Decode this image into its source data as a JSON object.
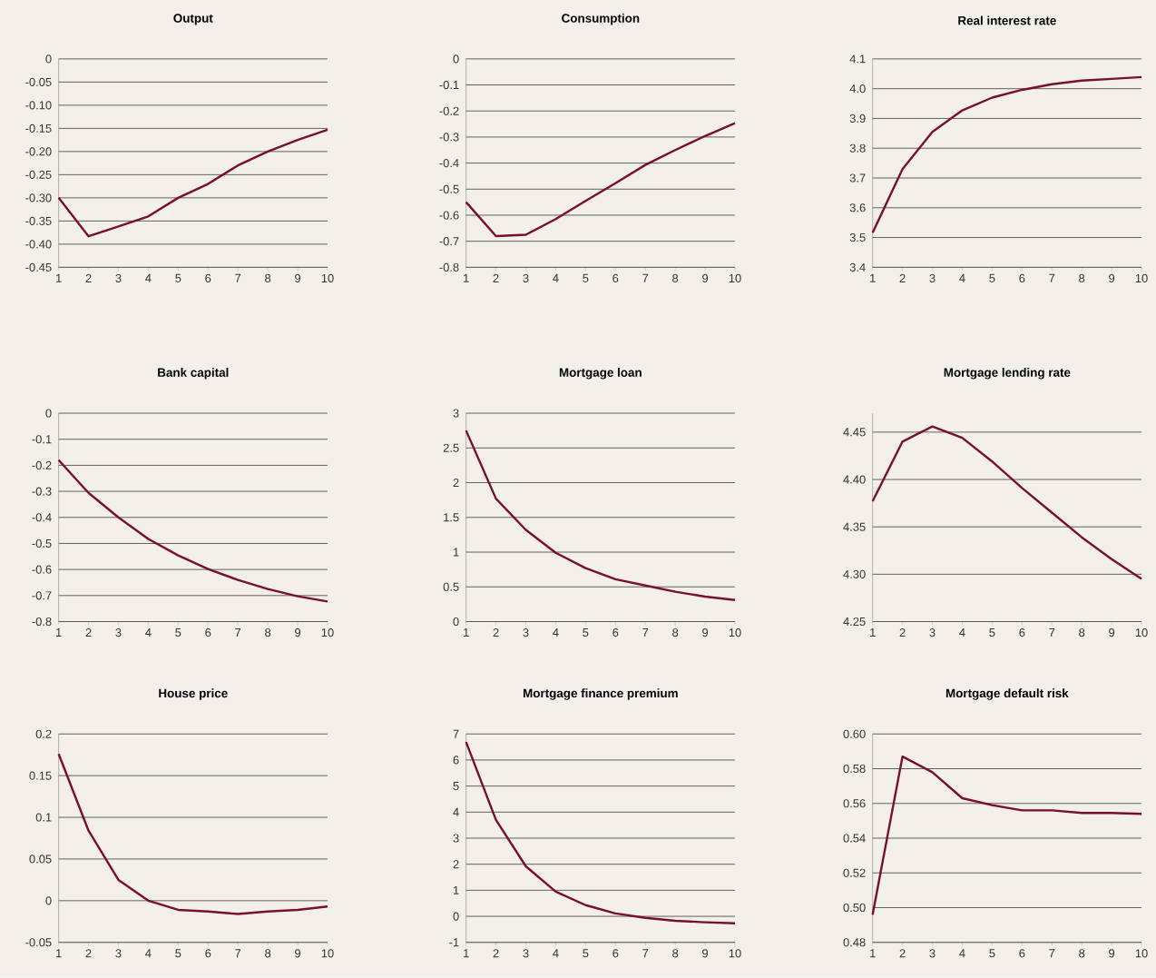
{
  "chart_data": [
    {
      "type": "line",
      "title": "Output",
      "x": [
        1,
        2,
        3,
        4,
        5,
        6,
        7,
        8,
        9,
        10
      ],
      "xlim": [
        1,
        10
      ],
      "xticks": [
        1,
        2,
        3,
        4,
        5,
        6,
        7,
        8,
        9,
        10
      ],
      "ylim": [
        -0.45,
        0
      ],
      "yticks": [
        {
          "value": -0.45,
          "label": "-0.45"
        },
        {
          "value": -0.4,
          "label": "-0.40"
        },
        {
          "value": -0.35,
          "label": "-0.35"
        },
        {
          "value": -0.3,
          "label": "-0.30"
        },
        {
          "value": -0.25,
          "label": "-0.25"
        },
        {
          "value": -0.2,
          "label": "-0.20"
        },
        {
          "value": -0.15,
          "label": "-0.15"
        },
        {
          "value": -0.1,
          "label": "-0.10"
        },
        {
          "value": -0.05,
          "label": "-0.05"
        },
        0
      ],
      "grid": "y",
      "color": "#7a0f2a",
      "values": [
        -0.3,
        -0.383,
        -0.362,
        -0.34,
        -0.3,
        -0.27,
        -0.23,
        -0.2,
        -0.175,
        -0.153
      ]
    },
    {
      "type": "line",
      "title": "Consumption",
      "x": [
        1,
        2,
        3,
        4,
        5,
        6,
        7,
        8,
        9,
        10
      ],
      "xlim": [
        1,
        10
      ],
      "xticks": [
        1,
        2,
        3,
        4,
        5,
        6,
        7,
        8,
        9,
        10
      ],
      "ylim": [
        -0.8,
        0
      ],
      "yticks": [
        -0.8,
        -0.7,
        -0.6,
        -0.5,
        -0.4,
        -0.3,
        -0.2,
        -0.1,
        0
      ],
      "grid": "y",
      "color": "#7a0f2a",
      "values": [
        -0.55,
        -0.68,
        -0.675,
        -0.615,
        -0.545,
        -0.477,
        -0.407,
        -0.35,
        -0.296,
        -0.247
      ]
    },
    {
      "type": "line",
      "title": "Real interest rate",
      "x": [
        1,
        2,
        3,
        4,
        5,
        6,
        7,
        8,
        9,
        10
      ],
      "xlim": [
        1,
        10
      ],
      "xticks": [
        1,
        2,
        3,
        4,
        5,
        6,
        7,
        8,
        9,
        10
      ],
      "ylim": [
        3.4,
        4.1
      ],
      "yticks": [
        3.4,
        3.5,
        3.6,
        3.7,
        3.8,
        3.9,
        {
          "value": 4,
          "label": "4.0"
        },
        4.1
      ],
      "grid": "y",
      "color": "#7a0f2a",
      "values": [
        3.516,
        3.73,
        3.855,
        3.927,
        3.97,
        3.996,
        4.015,
        4.027,
        4.033,
        4.039
      ]
    },
    {
      "type": "line",
      "title": "Bank capital",
      "x": [
        1,
        2,
        3,
        4,
        5,
        6,
        7,
        8,
        9,
        10
      ],
      "xlim": [
        1,
        10
      ],
      "xticks": [
        1,
        2,
        3,
        4,
        5,
        6,
        7,
        8,
        9,
        10
      ],
      "ylim": [
        -0.8,
        0
      ],
      "yticks": [
        -0.8,
        -0.7,
        -0.6,
        -0.5,
        -0.4,
        -0.3,
        -0.2,
        -0.1,
        0
      ],
      "grid": "y",
      "color": "#7a0f2a",
      "values": [
        -0.18,
        -0.306,
        -0.4,
        -0.483,
        -0.546,
        -0.598,
        -0.64,
        -0.675,
        -0.703,
        -0.723
      ]
    },
    {
      "type": "line",
      "title": "Mortgage loan",
      "x": [
        1,
        2,
        3,
        4,
        5,
        6,
        7,
        8,
        9,
        10
      ],
      "xlim": [
        1,
        10
      ],
      "xticks": [
        1,
        2,
        3,
        4,
        5,
        6,
        7,
        8,
        9,
        10
      ],
      "ylim": [
        0,
        3
      ],
      "yticks": [
        0,
        0.5,
        1,
        1.5,
        2,
        2.5,
        3
      ],
      "grid": "y",
      "color": "#7a0f2a",
      "values": [
        2.75,
        1.77,
        1.32,
        0.99,
        0.77,
        0.61,
        0.52,
        0.43,
        0.36,
        0.31
      ]
    },
    {
      "type": "line",
      "title": "Mortgage lending rate",
      "x": [
        1,
        2,
        3,
        4,
        5,
        6,
        7,
        8,
        9,
        10
      ],
      "xlim": [
        1,
        10
      ],
      "xticks": [
        1,
        2,
        3,
        4,
        5,
        6,
        7,
        8,
        9,
        10
      ],
      "ylim": [
        4.25,
        4.47
      ],
      "yticks": [
        4.25,
        {
          "value": 4.3,
          "label": "4.30"
        },
        4.35,
        {
          "value": 4.4,
          "label": "4.40"
        },
        4.45
      ],
      "grid": "y",
      "color": "#7a0f2a",
      "values": [
        4.377,
        4.44,
        4.456,
        4.444,
        4.419,
        4.391,
        4.365,
        4.339,
        4.316,
        4.295
      ]
    },
    {
      "type": "line",
      "title": "House price",
      "x": [
        1,
        2,
        3,
        4,
        5,
        6,
        7,
        8,
        9,
        10
      ],
      "xlim": [
        1,
        10
      ],
      "xticks": [
        1,
        2,
        3,
        4,
        5,
        6,
        7,
        8,
        9,
        10
      ],
      "ylim": [
        -0.05,
        0.2
      ],
      "yticks": [
        -0.05,
        0,
        0.05,
        0.1,
        0.15,
        0.2
      ],
      "grid": "y",
      "color": "#7a0f2a",
      "values": [
        0.176,
        0.084,
        0.025,
        0.0,
        -0.011,
        -0.013,
        -0.016,
        -0.013,
        -0.011,
        -0.007
      ]
    },
    {
      "type": "line",
      "title": "Mortgage finance premium",
      "x": [
        1,
        2,
        3,
        4,
        5,
        6,
        7,
        8,
        9,
        10
      ],
      "xlim": [
        1,
        10
      ],
      "xticks": [
        1,
        2,
        3,
        4,
        5,
        6,
        7,
        8,
        9,
        10
      ],
      "ylim": [
        -1,
        7
      ],
      "yticks": [
        -1,
        0,
        1,
        2,
        3,
        4,
        5,
        6,
        7
      ],
      "grid": "y",
      "color": "#7a0f2a",
      "values": [
        6.69,
        3.7,
        1.92,
        0.95,
        0.43,
        0.11,
        -0.06,
        -0.17,
        -0.23,
        -0.27
      ]
    },
    {
      "type": "line",
      "title": "Mortgage default risk",
      "x": [
        1,
        2,
        3,
        4,
        5,
        6,
        7,
        8,
        9,
        10
      ],
      "xlim": [
        1,
        10
      ],
      "xticks": [
        1,
        2,
        3,
        4,
        5,
        6,
        7,
        8,
        9,
        10
      ],
      "ylim": [
        0.48,
        0.6
      ],
      "yticks": [
        {
          "value": 0.48,
          "label": "0.48"
        },
        {
          "value": 0.5,
          "label": "0.50"
        },
        {
          "value": 0.52,
          "label": "0.52"
        },
        {
          "value": 0.54,
          "label": "0.54"
        },
        {
          "value": 0.56,
          "label": "0.56"
        },
        {
          "value": 0.58,
          "label": "0.58"
        },
        {
          "value": 0.6,
          "label": "0.60"
        }
      ],
      "grid": "y",
      "color": "#7a0f2a",
      "values": [
        0.496,
        0.587,
        0.578,
        0.563,
        0.559,
        0.556,
        0.556,
        0.5545,
        0.5545,
        0.554
      ]
    }
  ]
}
